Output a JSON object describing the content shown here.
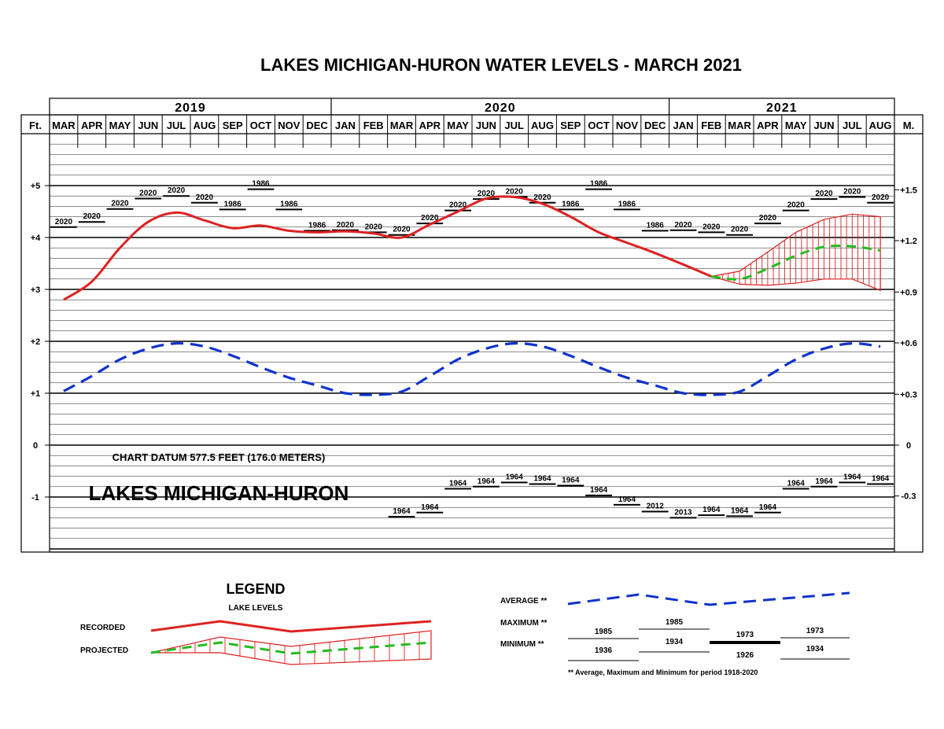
{
  "title": "LAKES MICHIGAN-HURON WATER LEVELS - MARCH 2021",
  "years": [
    {
      "label": "2019",
      "from": 0,
      "to": 10
    },
    {
      "label": "2020",
      "from": 10,
      "to": 22
    },
    {
      "label": "2021",
      "from": 22,
      "to": 30
    }
  ],
  "units": {
    "left": "Ft.",
    "right": "M."
  },
  "datum_text": "CHART DATUM 577.5 FEET (176.0 METERS)",
  "lake_name": "LAKES MICHIGAN-HURON",
  "colors": {
    "recorded": "#dd2222",
    "projected": "#22bb22",
    "average": "#1133cc",
    "grid": "#000000"
  },
  "chart_data": {
    "type": "line",
    "months": [
      "MAR",
      "APR",
      "MAY",
      "JUN",
      "JUL",
      "AUG",
      "SEP",
      "OCT",
      "NOV",
      "DEC",
      "JAN",
      "FEB",
      "MAR",
      "APR",
      "MAY",
      "JUN",
      "JUL",
      "AUG",
      "SEP",
      "OCT",
      "NOV",
      "DEC",
      "JAN",
      "FEB",
      "MAR",
      "APR",
      "MAY",
      "JUN",
      "JUL",
      "AUG"
    ],
    "ylim_ft": [
      -2,
      6
    ],
    "left_ticks": [
      {
        "v": 5,
        "label": "+5"
      },
      {
        "v": 4,
        "label": "+4"
      },
      {
        "v": 3,
        "label": "+3"
      },
      {
        "v": 2,
        "label": "+2"
      },
      {
        "v": 1,
        "label": "+1"
      },
      {
        "v": 0,
        "label": "0"
      },
      {
        "v": -1,
        "label": "-1"
      }
    ],
    "right_ticks": [
      {
        "v": 4.92,
        "label": "+1.5"
      },
      {
        "v": 3.94,
        "label": "+1.2"
      },
      {
        "v": 2.95,
        "label": "+0.9"
      },
      {
        "v": 1.97,
        "label": "+0.6"
      },
      {
        "v": 0.98,
        "label": "+0.3"
      },
      {
        "v": 0,
        "label": "0"
      },
      {
        "v": -0.98,
        "label": "-0.3"
      }
    ],
    "recorded_ft": [
      2.8,
      3.15,
      3.8,
      4.3,
      4.48,
      4.33,
      4.18,
      4.23,
      4.13,
      4.1,
      4.12,
      4.08,
      4.0,
      4.25,
      4.5,
      4.75,
      4.78,
      4.65,
      4.4,
      4.1,
      3.9,
      3.7,
      3.48,
      3.25
    ],
    "projected_ft": [
      null,
      null,
      null,
      null,
      null,
      null,
      null,
      null,
      null,
      null,
      null,
      null,
      null,
      null,
      null,
      null,
      null,
      null,
      null,
      null,
      null,
      null,
      null,
      3.25,
      3.2,
      3.4,
      3.65,
      3.82,
      3.83,
      3.75
    ],
    "projected_high_ft": [
      null,
      null,
      null,
      null,
      null,
      null,
      null,
      null,
      null,
      null,
      null,
      null,
      null,
      null,
      null,
      null,
      null,
      null,
      null,
      null,
      null,
      null,
      null,
      3.25,
      3.35,
      3.72,
      4.1,
      4.35,
      4.45,
      4.4
    ],
    "projected_low_ft": [
      null,
      null,
      null,
      null,
      null,
      null,
      null,
      null,
      null,
      null,
      null,
      null,
      null,
      null,
      null,
      null,
      null,
      null,
      null,
      null,
      null,
      null,
      null,
      3.25,
      3.1,
      3.08,
      3.12,
      3.2,
      3.2,
      2.98
    ],
    "average_ft": [
      1.04,
      1.33,
      1.65,
      1.86,
      1.96,
      1.9,
      1.72,
      1.5,
      1.3,
      1.15,
      1.0,
      0.97,
      1.03,
      1.33,
      1.65,
      1.86,
      1.96,
      1.9,
      1.72,
      1.5,
      1.3,
      1.15,
      1.0,
      0.97,
      1.03,
      1.33,
      1.65,
      1.86,
      1.96,
      1.9
    ],
    "maximum": [
      {
        "ft": 4.2,
        "year": "2020"
      },
      {
        "ft": 4.3,
        "year": "2020"
      },
      {
        "ft": 4.55,
        "year": "2020"
      },
      {
        "ft": 4.75,
        "year": "2020"
      },
      {
        "ft": 4.8,
        "year": "2020"
      },
      {
        "ft": 4.67,
        "year": "2020"
      },
      {
        "ft": 4.54,
        "year": "1986"
      },
      {
        "ft": 4.93,
        "year": "1986"
      },
      {
        "ft": 4.54,
        "year": "1986"
      },
      {
        "ft": 4.13,
        "year": "1986"
      },
      {
        "ft": 4.14,
        "year": "2020"
      },
      {
        "ft": 4.1,
        "year": "2020"
      },
      {
        "ft": 4.05,
        "year": "2020"
      },
      {
        "ft": 4.27,
        "year": "2020"
      },
      {
        "ft": 4.52,
        "year": "2020"
      },
      {
        "ft": 4.74,
        "year": "2020"
      },
      {
        "ft": 4.78,
        "year": "2020"
      },
      {
        "ft": 4.67,
        "year": "2020"
      },
      {
        "ft": 4.54,
        "year": "1986"
      },
      {
        "ft": 4.93,
        "year": "1986"
      },
      {
        "ft": 4.54,
        "year": "1986"
      },
      {
        "ft": 4.13,
        "year": "1986"
      },
      {
        "ft": 4.14,
        "year": "2020"
      },
      {
        "ft": 4.1,
        "year": "2020"
      },
      {
        "ft": 4.05,
        "year": "2020"
      },
      {
        "ft": 4.27,
        "year": "2020"
      },
      {
        "ft": 4.52,
        "year": "2020"
      },
      {
        "ft": 4.74,
        "year": "2020"
      },
      {
        "ft": 4.78,
        "year": "2020"
      },
      {
        "ft": 4.67,
        "year": "2020"
      }
    ],
    "minimum": [
      {
        "ft": null,
        "year": ""
      },
      {
        "ft": null,
        "year": ""
      },
      {
        "ft": null,
        "year": ""
      },
      {
        "ft": null,
        "year": ""
      },
      {
        "ft": null,
        "year": ""
      },
      {
        "ft": null,
        "year": ""
      },
      {
        "ft": null,
        "year": ""
      },
      {
        "ft": null,
        "year": ""
      },
      {
        "ft": null,
        "year": ""
      },
      {
        "ft": null,
        "year": ""
      },
      {
        "ft": null,
        "year": ""
      },
      {
        "ft": null,
        "year": ""
      },
      {
        "ft": -1.38,
        "year": "1964"
      },
      {
        "ft": -1.3,
        "year": "1964"
      },
      {
        "ft": -0.84,
        "year": "1964"
      },
      {
        "ft": -0.8,
        "year": "1964"
      },
      {
        "ft": -0.72,
        "year": "1964"
      },
      {
        "ft": -0.75,
        "year": "1964"
      },
      {
        "ft": -0.78,
        "year": "1964"
      },
      {
        "ft": -0.97,
        "year": "1964"
      },
      {
        "ft": -1.15,
        "year": "1964"
      },
      {
        "ft": -1.28,
        "year": "2012"
      },
      {
        "ft": -1.4,
        "year": "2013"
      },
      {
        "ft": -1.35,
        "year": "1964"
      },
      {
        "ft": -1.37,
        "year": "1964"
      },
      {
        "ft": -1.3,
        "year": "1964"
      },
      {
        "ft": -0.84,
        "year": "1964"
      },
      {
        "ft": -0.8,
        "year": "1964"
      },
      {
        "ft": -0.72,
        "year": "1964"
      },
      {
        "ft": -0.75,
        "year": "1964"
      }
    ]
  },
  "legend": {
    "title": "LEGEND",
    "subtitle": "LAKE LEVELS",
    "recorded": "RECORDED",
    "projected": "PROJECTED",
    "average": "AVERAGE **",
    "maximum": "MAXIMUM **",
    "minimum": "MINIMUM **",
    "max_years": [
      "1985",
      "1985",
      "1973",
      "1973"
    ],
    "min_years": [
      "1936",
      "1934",
      "1926",
      "1934"
    ],
    "note": "** Average, Maximum and Minimum for period 1918-2020"
  }
}
